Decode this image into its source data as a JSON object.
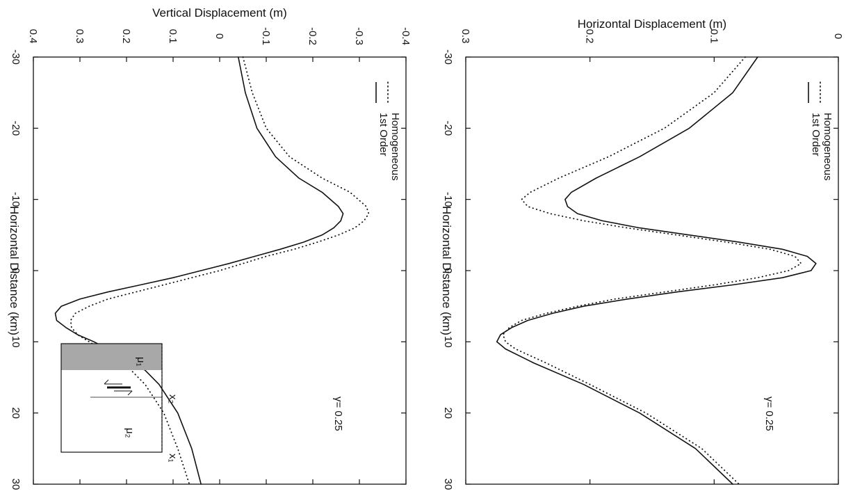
{
  "chart_data": [
    {
      "type": "line",
      "ylabel": "Vertical Displacement (m)",
      "xlabel": "Horizontal Distance (km)",
      "xlim": [
        -30,
        30
      ],
      "ylim": [
        -0.4,
        0.4
      ],
      "xticks": [
        "-30",
        "-20",
        "-10",
        "0",
        "10",
        "20",
        "30"
      ],
      "yticks": [
        "-0.4",
        "-0.3",
        "-0.2",
        "-0.1",
        "0",
        "0.1",
        "0.2",
        "0.3",
        "0.4"
      ],
      "annotation": "γ= 0.25",
      "legend_position": "top-left",
      "series": [
        {
          "name": "Homogeneous",
          "style": "dotted",
          "x": [
            -30,
            -25,
            -20,
            -16,
            -13,
            -11,
            -9,
            -8,
            -7,
            -6,
            -5,
            -4,
            -3,
            -2,
            -1,
            0,
            1,
            2,
            3,
            4,
            5,
            6,
            7,
            8,
            9,
            10,
            12,
            14,
            16,
            20,
            25,
            30
          ],
          "y": [
            -0.05,
            -0.07,
            -0.1,
            -0.15,
            -0.22,
            -0.28,
            -0.315,
            -0.32,
            -0.31,
            -0.29,
            -0.255,
            -0.21,
            -0.16,
            -0.1,
            -0.05,
            0.0,
            0.06,
            0.12,
            0.18,
            0.24,
            0.28,
            0.31,
            0.32,
            0.318,
            0.305,
            0.28,
            0.23,
            0.19,
            0.16,
            0.12,
            0.09,
            0.065
          ]
        },
        {
          "name": "1st Order",
          "style": "solid",
          "x": [
            -30,
            -25,
            -20,
            -16,
            -13,
            -11,
            -9,
            -8,
            -7,
            -6,
            -5,
            -4,
            -3,
            -2,
            -1,
            0,
            1,
            2,
            3,
            4,
            5,
            6,
            7,
            8,
            9,
            10,
            12,
            14,
            16,
            20,
            25,
            30
          ],
          "y": [
            -0.04,
            -0.055,
            -0.08,
            -0.12,
            -0.17,
            -0.22,
            -0.255,
            -0.265,
            -0.26,
            -0.245,
            -0.22,
            -0.18,
            -0.13,
            -0.075,
            -0.02,
            0.04,
            0.1,
            0.17,
            0.24,
            0.3,
            0.34,
            0.353,
            0.35,
            0.33,
            0.305,
            0.27,
            0.21,
            0.16,
            0.13,
            0.09,
            0.06,
            0.04
          ]
        }
      ],
      "inset": {
        "x1_label": "x₁",
        "x2_label": "x₂",
        "mu_left": "μ₁",
        "mu_right": "μ₂"
      }
    },
    {
      "type": "line",
      "ylabel": "Horizontal Displacement (m)",
      "xlabel": "Horizontal Distance (km)",
      "xlim": [
        -30,
        30
      ],
      "ylim": [
        0,
        0.3
      ],
      "xticks": [
        "-30",
        "-20",
        "-10",
        "0",
        "10",
        "20",
        "30"
      ],
      "yticks": [
        "0",
        "0.1",
        "0.2",
        "0.3"
      ],
      "annotation": "γ= 0.25",
      "legend_position": "top-left",
      "series": [
        {
          "name": "Homogeneous",
          "style": "dotted",
          "x": [
            -30,
            -25,
            -20,
            -16,
            -13,
            -11,
            -10,
            -9,
            -8,
            -7,
            -6,
            -5,
            -4,
            -3,
            -2,
            -1,
            0,
            1,
            2,
            3,
            4,
            5,
            6,
            7,
            8,
            9,
            10,
            11,
            13,
            16,
            20,
            25,
            30
          ],
          "y": [
            0.075,
            0.1,
            0.14,
            0.185,
            0.225,
            0.248,
            0.255,
            0.25,
            0.232,
            0.205,
            0.17,
            0.13,
            0.09,
            0.055,
            0.035,
            0.03,
            0.04,
            0.065,
            0.1,
            0.14,
            0.18,
            0.21,
            0.235,
            0.255,
            0.265,
            0.27,
            0.268,
            0.26,
            0.235,
            0.2,
            0.155,
            0.11,
            0.08
          ]
        },
        {
          "name": "1st Order",
          "style": "solid",
          "x": [
            -30,
            -25,
            -20,
            -16,
            -13,
            -11,
            -10,
            -9,
            -8,
            -7,
            -6,
            -5,
            -4,
            -3,
            -2,
            -1,
            0,
            1,
            2,
            3,
            4,
            5,
            6,
            7,
            8,
            9,
            10,
            11,
            13,
            16,
            20,
            25,
            30
          ],
          "y": [
            0.065,
            0.085,
            0.12,
            0.16,
            0.195,
            0.215,
            0.22,
            0.218,
            0.21,
            0.19,
            0.16,
            0.12,
            0.08,
            0.045,
            0.025,
            0.018,
            0.022,
            0.045,
            0.085,
            0.13,
            0.17,
            0.205,
            0.23,
            0.25,
            0.263,
            0.272,
            0.275,
            0.268,
            0.245,
            0.205,
            0.16,
            0.115,
            0.085
          ]
        }
      ]
    }
  ]
}
